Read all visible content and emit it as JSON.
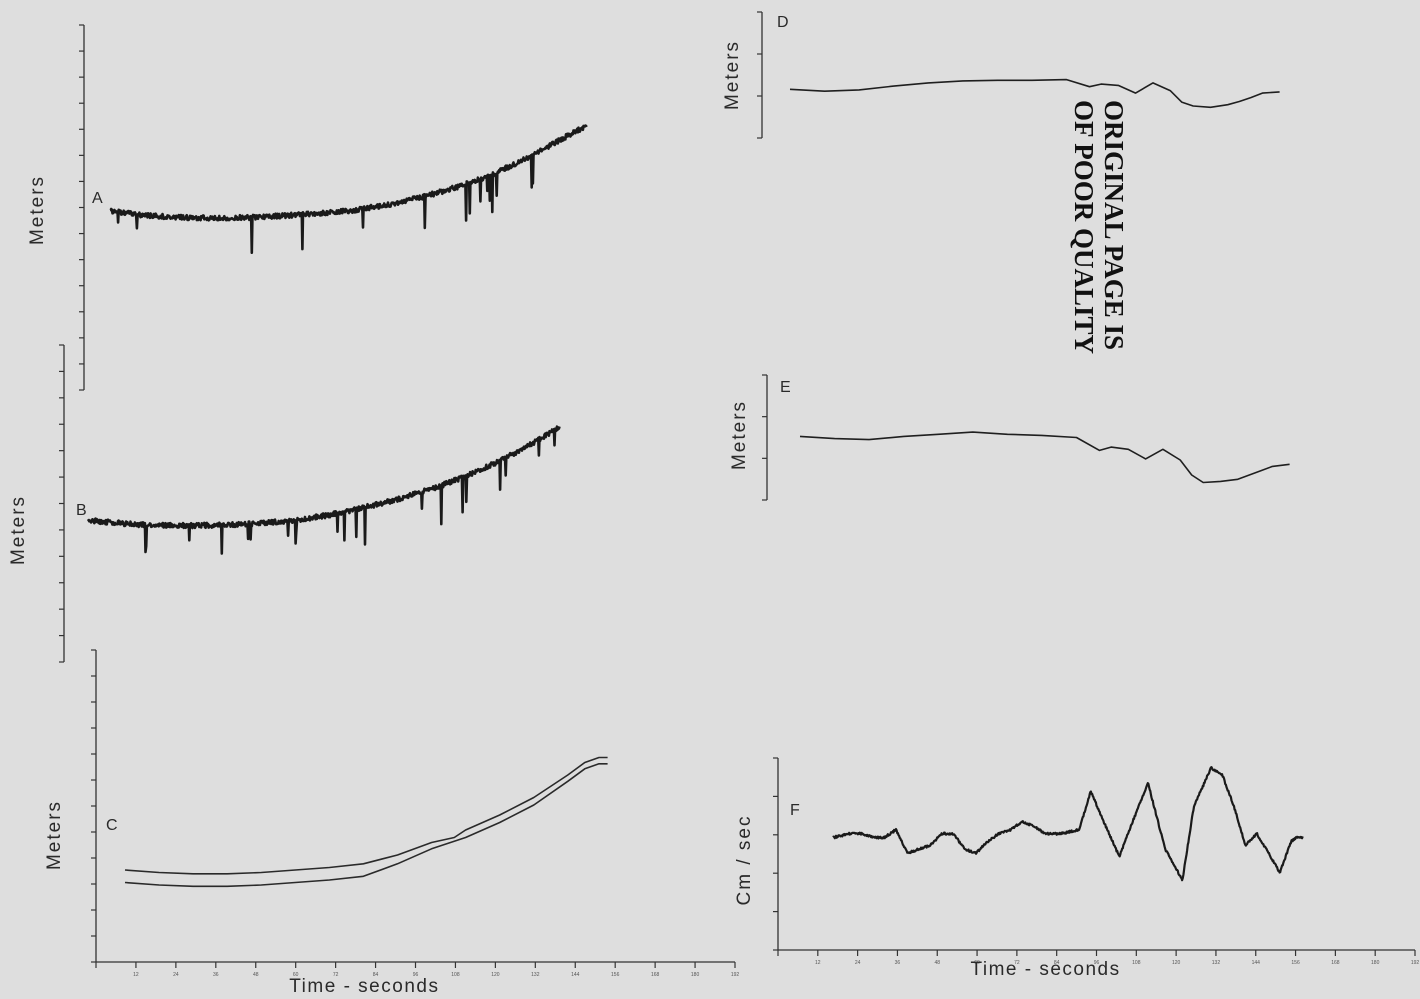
{
  "figure": {
    "stamp": [
      "ORIGINAL PAGE IS",
      "OF POOR QUALITY"
    ]
  },
  "chart_data": [
    {
      "id": "A",
      "type": "line",
      "panel_label": "A",
      "ylabel": "Meters",
      "xlabel": "",
      "x_range": [
        0,
        192
      ],
      "line_color": "#1a1a1a",
      "noisy": true,
      "series": [
        {
          "x": [
            0,
            12,
            24,
            36,
            48,
            60,
            72,
            84,
            96,
            108,
            120,
            132,
            144,
            156,
            164
          ],
          "y": [
            0,
            -0.35,
            -0.55,
            -0.6,
            -0.55,
            -0.4,
            -0.2,
            0.1,
            0.6,
            1.3,
            2.2,
            3.3,
            4.8,
            6.5,
            7.6
          ]
        }
      ]
    },
    {
      "id": "B",
      "type": "line",
      "panel_label": "B",
      "ylabel": "Meters",
      "xlabel": "",
      "x_range": [
        0,
        192
      ],
      "line_color": "#1a1a1a",
      "noisy": true,
      "series": [
        {
          "x": [
            0,
            12,
            24,
            36,
            48,
            60,
            72,
            84,
            96,
            108,
            120,
            132,
            144,
            156,
            164
          ],
          "y": [
            0,
            -0.3,
            -0.5,
            -0.5,
            -0.45,
            -0.3,
            0.0,
            0.5,
            1.2,
            2.0,
            3.0,
            4.2,
            5.7,
            7.5,
            8.8
          ]
        }
      ]
    },
    {
      "id": "C",
      "type": "line",
      "panel_label": "C",
      "ylabel": "Meters",
      "xlabel": "Time - seconds",
      "x_range": [
        0,
        192
      ],
      "x_ticks": [
        "12",
        "24",
        "36",
        "48",
        "60",
        "72",
        "84",
        "96",
        "108",
        "120",
        "132",
        "144",
        "156",
        "168",
        "180",
        "192"
      ],
      "line_color": "#2a2a2a",
      "noisy": false,
      "series": [
        {
          "x": [
            0,
            12,
            24,
            36,
            48,
            60,
            72,
            84,
            96,
            108,
            116,
            120,
            132,
            144,
            156,
            162,
            167,
            170
          ],
          "y": [
            0,
            -0.2,
            -0.3,
            -0.3,
            -0.2,
            0.0,
            0.2,
            0.5,
            1.2,
            2.2,
            2.6,
            3.2,
            4.4,
            5.8,
            7.6,
            8.6,
            9.0,
            9.0
          ]
        },
        {
          "x": [
            0,
            12,
            24,
            36,
            48,
            60,
            72,
            84,
            96,
            104,
            108,
            120,
            132,
            144,
            156,
            162,
            167,
            170
          ],
          "y": [
            -1.0,
            -1.2,
            -1.3,
            -1.3,
            -1.2,
            -1.0,
            -0.8,
            -0.5,
            0.5,
            1.3,
            1.7,
            2.6,
            3.8,
            5.2,
            7.1,
            8.1,
            8.5,
            8.5
          ]
        }
      ]
    },
    {
      "id": "D",
      "type": "line",
      "panel_label": "D",
      "ylabel": "Meters",
      "xlabel": "",
      "x_range": [
        0,
        192
      ],
      "line_color": "#1f1f1f",
      "noisy": false,
      "series": [
        {
          "x": [
            0,
            12,
            24,
            36,
            48,
            60,
            72,
            84,
            96,
            104,
            108,
            114,
            120,
            126,
            132,
            136,
            140,
            146,
            152,
            156,
            160,
            164,
            170
          ],
          "y": [
            0,
            -0.3,
            -0.1,
            0.5,
            1.0,
            1.3,
            1.4,
            1.4,
            1.5,
            0.4,
            0.8,
            0.6,
            -0.6,
            1.0,
            -0.2,
            -2.0,
            -2.6,
            -2.8,
            -2.4,
            -1.9,
            -1.3,
            -0.6,
            -0.4
          ]
        }
      ]
    },
    {
      "id": "E",
      "type": "line",
      "panel_label": "E",
      "ylabel": "Meters",
      "xlabel": "",
      "x_range": [
        0,
        192
      ],
      "line_color": "#1f1f1f",
      "noisy": false,
      "series": [
        {
          "x": [
            0,
            12,
            24,
            36,
            48,
            60,
            72,
            84,
            96,
            104,
            108,
            114,
            120,
            126,
            132,
            136,
            140,
            146,
            152,
            156,
            160,
            164,
            170
          ],
          "y": [
            0,
            -0.2,
            -0.3,
            0.0,
            0.2,
            0.4,
            0.2,
            0.1,
            -0.1,
            -1.3,
            -1.0,
            -1.2,
            -2.1,
            -1.2,
            -2.2,
            -3.6,
            -4.3,
            -4.2,
            -4.0,
            -3.6,
            -3.2,
            -2.8,
            -2.6
          ]
        }
      ]
    },
    {
      "id": "F",
      "type": "line",
      "panel_label": "F",
      "ylabel": "Cm / sec",
      "xlabel": "Time - seconds",
      "x_range": [
        0,
        192
      ],
      "x_ticks": [
        "12",
        "24",
        "36",
        "48",
        "60",
        "72",
        "84",
        "96",
        "108",
        "120",
        "132",
        "144",
        "156",
        "168",
        "180",
        "192"
      ],
      "line_color": "#1a1a1a",
      "noisy": true,
      "series": [
        {
          "x": [
            8,
            14,
            18,
            22,
            26,
            30,
            34,
            38,
            42,
            46,
            50,
            54,
            58,
            62,
            66,
            70,
            74,
            78,
            82,
            88,
            94,
            98,
            102,
            108,
            112,
            118,
            124,
            130,
            134,
            140,
            144,
            148,
            152,
            156,
            160,
            164,
            168,
            170,
            172
          ],
          "y": [
            0.0,
            0.1,
            0.1,
            0.0,
            0.0,
            0.2,
            -0.4,
            -0.3,
            -0.2,
            0.1,
            0.1,
            -0.3,
            -0.4,
            -0.1,
            0.1,
            0.2,
            0.4,
            0.3,
            0.1,
            0.1,
            0.2,
            1.2,
            0.5,
            -0.5,
            0.3,
            1.4,
            -0.3,
            -1.1,
            0.8,
            1.8,
            1.6,
            0.8,
            -0.2,
            0.1,
            -0.4,
            -0.9,
            -0.1,
            0.0,
            0.0
          ]
        }
      ]
    }
  ]
}
